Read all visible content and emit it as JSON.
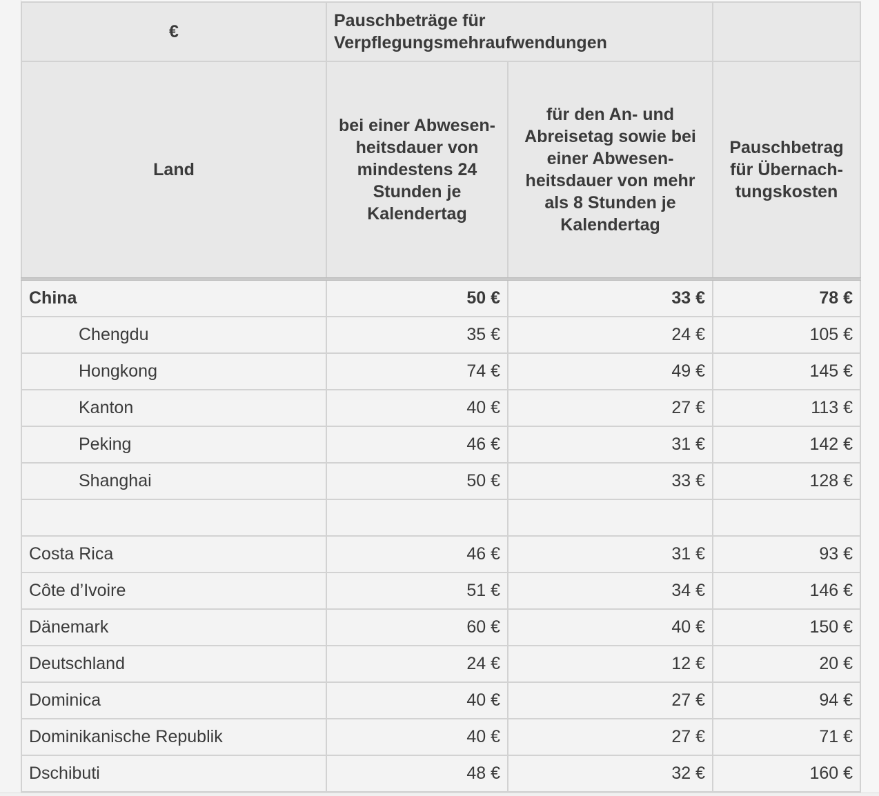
{
  "header": {
    "currency": "€",
    "group_title": "Pauschbeträge für Verpflegungsmehraufwendungen",
    "col_land": "Land",
    "col_24h": "bei einer Abwesen-heitsdauer von mindestens 24 Stunden je Kalendertag",
    "col_8h": "für den An- und Abreisetag sowie bei einer Abwesen-heitsdauer von mehr als 8 Stunden je Kalendertag",
    "col_night": "Pauschbetrag für Übernach-tungskosten"
  },
  "rows": [
    {
      "land": "China",
      "a": "50 €",
      "b": "33 €",
      "c": "78 €",
      "bold": true
    },
    {
      "land": "Chengdu",
      "a": "35 €",
      "b": "24 €",
      "c": "105 €",
      "indent": true
    },
    {
      "land": "Hongkong",
      "a": "74 €",
      "b": "49 €",
      "c": "145 €",
      "indent": true
    },
    {
      "land": "Kanton",
      "a": "40 €",
      "b": "27 €",
      "c": "113 €",
      "indent": true
    },
    {
      "land": "Peking",
      "a": "46 €",
      "b": "31 €",
      "c": "142 €",
      "indent": true
    },
    {
      "land": "Shanghai",
      "a": "50 €",
      "b": "33 €",
      "c": "128 €",
      "indent": true
    },
    {
      "land": "",
      "a": "",
      "b": "",
      "c": ""
    },
    {
      "land": "Costa Rica",
      "a": "46 €",
      "b": "31 €",
      "c": "93 €"
    },
    {
      "land": "Côte d’Ivoire",
      "a": "51 €",
      "b": "34 €",
      "c": "146 €"
    },
    {
      "land": "Dänemark",
      "a": "60 €",
      "b": "40 €",
      "c": "150 €"
    },
    {
      "land": "Deutschland",
      "a": "24 €",
      "b": "12 €",
      "c": "20 €"
    },
    {
      "land": "Dominica",
      "a": "40 €",
      "b": "27 €",
      "c": "94 €"
    },
    {
      "land": "Dominikanische Republik",
      "a": "40 €",
      "b": "27 €",
      "c": "71 €"
    },
    {
      "land": "Dschibuti",
      "a": "48 €",
      "b": "32 €",
      "c": "160 €"
    }
  ]
}
